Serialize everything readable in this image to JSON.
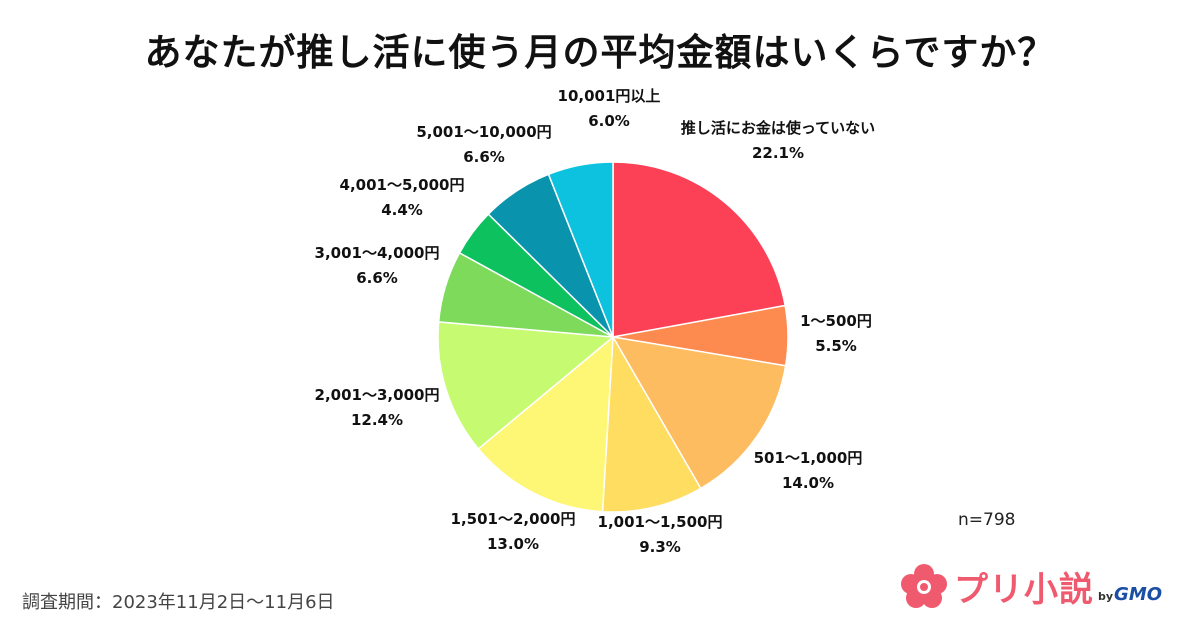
{
  "chart_data": {
    "type": "pie",
    "title": "あなたが推し活に使う月の平均金額はいくらですか？",
    "categories": [
      "推し活にお金は使っていない",
      "1〜500円",
      "501〜1,000円",
      "1,001〜1,500円",
      "1,501〜2,000円",
      "2,001〜3,000円",
      "3,001〜4,000円",
      "4,001〜5,000円",
      "5,001〜10,000円",
      "10,001円以上"
    ],
    "values": [
      22.1,
      5.5,
      14.0,
      9.3,
      13.0,
      12.4,
      6.6,
      4.4,
      6.6,
      6.0
    ],
    "value_labels": [
      "22.1%",
      "5.5%",
      "14.0%",
      "9.3%",
      "13.0%",
      "12.4%",
      "6.6%",
      "4.4%",
      "6.6%",
      "6.0%"
    ],
    "colors": [
      "#fc4157",
      "#fd8a4f",
      "#fdbc5f",
      "#fedd60",
      "#fef675",
      "#c5fa71",
      "#7dda5a",
      "#0ec15f",
      "#0993ac",
      "#0cc2de"
    ],
    "start_angle": "12 o'clock",
    "direction": "clockwise",
    "sample_size": "n=798"
  },
  "footer": {
    "period": "調査期間：2023年11月2日〜11月6日"
  },
  "brand": {
    "name": "プリ小説",
    "by": "by",
    "company": "GMO",
    "accent_color": "#f05a6e"
  }
}
